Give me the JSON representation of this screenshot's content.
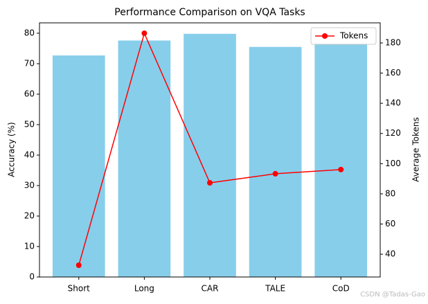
{
  "chart_data": {
    "type": "bar",
    "title": "Performance Comparison on VQA Tasks",
    "categories": [
      "Short",
      "Long",
      "CAR",
      "TALE",
      "CoD"
    ],
    "values": [
      72.7,
      77.6,
      79.8,
      75.5,
      76.6
    ],
    "color": "#87ceeb",
    "ylabel": "Accuracy (%)",
    "ylim": [
      0,
      83.4
    ],
    "yticks": [
      0,
      10,
      20,
      30,
      40,
      50,
      60,
      70,
      80
    ],
    "y2label": "Average Tokens",
    "y2lim": [
      24.9,
      193.3
    ],
    "y2ticks": [
      40,
      60,
      80,
      100,
      120,
      140,
      160,
      180
    ],
    "series": [
      {
        "name": "Tokens",
        "type": "line",
        "axis": "y2",
        "color": "#ff0000",
        "values": [
          32.7,
          186.4,
          87.3,
          93.3,
          96.1
        ]
      }
    ],
    "legend": "upper right",
    "watermark": "CSDN @Tadas-Gao"
  }
}
